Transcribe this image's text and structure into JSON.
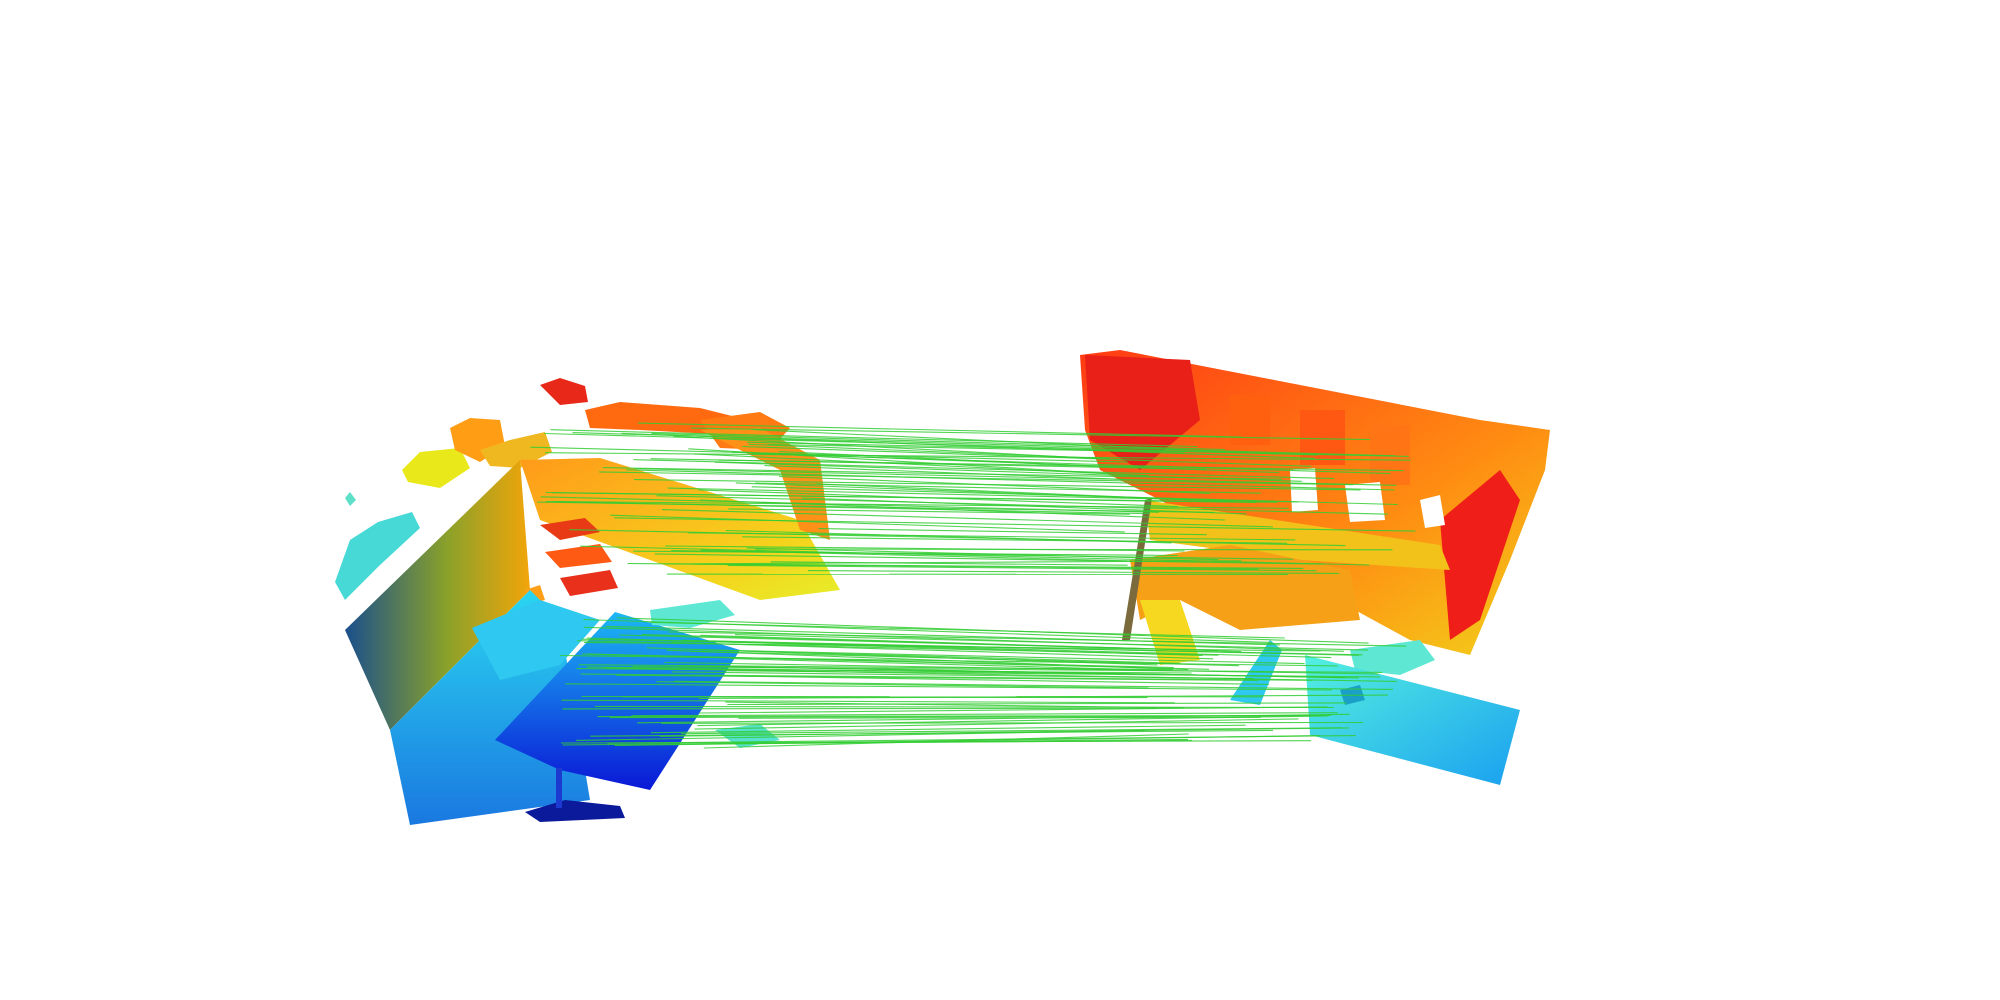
{
  "scene": {
    "background": "#ffffff",
    "correspondence_color": "#33cc33",
    "colormap": [
      "#00008b",
      "#0000ff",
      "#00c8ff",
      "#7fffd4",
      "#ffff00",
      "#ff9900",
      "#ff0000"
    ]
  }
}
